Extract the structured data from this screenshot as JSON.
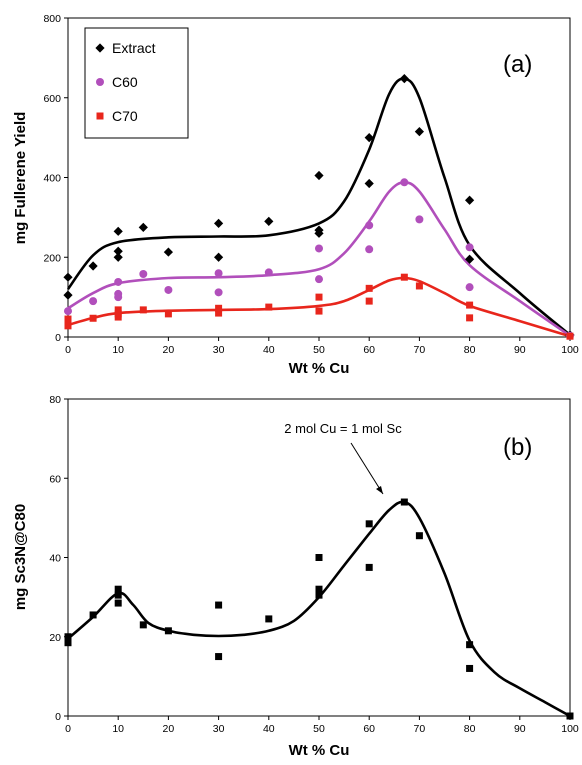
{
  "chart_data": [
    {
      "type": "scatter",
      "panel_label": "(a)",
      "xlabel": "Wt % Cu",
      "ylabel": "mg Fullerene Yield",
      "xlim": [
        0,
        100
      ],
      "ylim": [
        0,
        800
      ],
      "xticks": [
        0,
        10,
        20,
        30,
        40,
        50,
        60,
        70,
        80,
        90,
        100
      ],
      "yticks": [
        0,
        200,
        400,
        600,
        800
      ],
      "grid": false,
      "legend": "top-left",
      "series": [
        {
          "name": "Extract",
          "marker": "diamond",
          "color": "#000000",
          "points": [
            [
              0,
              150
            ],
            [
              0,
              105
            ],
            [
              5,
              178
            ],
            [
              10,
              265
            ],
            [
              10,
              215
            ],
            [
              10,
              200
            ],
            [
              15,
              275
            ],
            [
              20,
              213
            ],
            [
              30,
              285
            ],
            [
              30,
              200
            ],
            [
              40,
              290
            ],
            [
              50,
              405
            ],
            [
              50,
              268
            ],
            [
              50,
              260
            ],
            [
              60,
              500
            ],
            [
              60,
              385
            ],
            [
              67,
              648
            ],
            [
              70,
              515
            ],
            [
              80,
              343
            ],
            [
              80,
              195
            ],
            [
              100,
              5
            ]
          ],
          "curve": [
            [
              0,
              120
            ],
            [
              5,
              205
            ],
            [
              10,
              238
            ],
            [
              20,
              250
            ],
            [
              30,
              252
            ],
            [
              40,
              255
            ],
            [
              50,
              285
            ],
            [
              55,
              340
            ],
            [
              60,
              470
            ],
            [
              64,
              610
            ],
            [
              67,
              648
            ],
            [
              70,
              600
            ],
            [
              75,
              400
            ],
            [
              80,
              230
            ],
            [
              90,
              110
            ],
            [
              100,
              5
            ]
          ]
        },
        {
          "name": "C60",
          "marker": "circle",
          "color": "#b14fbb",
          "points": [
            [
              0,
              65
            ],
            [
              5,
              90
            ],
            [
              10,
              138
            ],
            [
              10,
              108
            ],
            [
              10,
              100
            ],
            [
              15,
              158
            ],
            [
              20,
              118
            ],
            [
              30,
              160
            ],
            [
              30,
              112
            ],
            [
              40,
              162
            ],
            [
              50,
              222
            ],
            [
              50,
              145
            ],
            [
              60,
              280
            ],
            [
              60,
              220
            ],
            [
              67,
              388
            ],
            [
              70,
              295
            ],
            [
              80,
              225
            ],
            [
              80,
              125
            ],
            [
              100,
              3
            ]
          ],
          "curve": [
            [
              0,
              72
            ],
            [
              5,
              110
            ],
            [
              10,
              135
            ],
            [
              20,
              148
            ],
            [
              30,
              150
            ],
            [
              40,
              155
            ],
            [
              50,
              170
            ],
            [
              55,
              210
            ],
            [
              60,
              290
            ],
            [
              64,
              365
            ],
            [
              67,
              388
            ],
            [
              70,
              365
            ],
            [
              75,
              270
            ],
            [
              80,
              180
            ],
            [
              90,
              90
            ],
            [
              100,
              3
            ]
          ]
        },
        {
          "name": "C70",
          "marker": "square",
          "color": "#e8261c",
          "points": [
            [
              0,
              45
            ],
            [
              0,
              35
            ],
            [
              0,
              28
            ],
            [
              5,
              47
            ],
            [
              10,
              68
            ],
            [
              10,
              58
            ],
            [
              10,
              50
            ],
            [
              15,
              68
            ],
            [
              20,
              58
            ],
            [
              30,
              72
            ],
            [
              30,
              60
            ],
            [
              40,
              75
            ],
            [
              50,
              100
            ],
            [
              50,
              65
            ],
            [
              60,
              122
            ],
            [
              60,
              90
            ],
            [
              67,
              150
            ],
            [
              70,
              128
            ],
            [
              80,
              80
            ],
            [
              80,
              48
            ],
            [
              100,
              2
            ]
          ],
          "curve": [
            [
              0,
              30
            ],
            [
              5,
              48
            ],
            [
              10,
              60
            ],
            [
              20,
              66
            ],
            [
              30,
              68
            ],
            [
              40,
              70
            ],
            [
              50,
              78
            ],
            [
              55,
              90
            ],
            [
              60,
              118
            ],
            [
              64,
              142
            ],
            [
              67,
              148
            ],
            [
              70,
              140
            ],
            [
              75,
              110
            ],
            [
              80,
              78
            ],
            [
              90,
              40
            ],
            [
              100,
              2
            ]
          ]
        }
      ]
    },
    {
      "type": "scatter",
      "panel_label": "(b)",
      "xlabel": "Wt % Cu",
      "ylabel": "mg Sc3N@C80",
      "xlim": [
        0,
        100
      ],
      "ylim": [
        0,
        80
      ],
      "xticks": [
        0,
        10,
        20,
        30,
        40,
        50,
        60,
        70,
        80,
        90,
        100
      ],
      "yticks": [
        0,
        20,
        40,
        60,
        80
      ],
      "grid": false,
      "annotation": "2 mol Cu = 1 mol Sc",
      "annotation_target": [
        67,
        54
      ],
      "series": [
        {
          "marker": "square",
          "color": "#000000",
          "points": [
            [
              0,
              20
            ],
            [
              0,
              18.5
            ],
            [
              5,
              25.5
            ],
            [
              10,
              32
            ],
            [
              10,
              30.5
            ],
            [
              10,
              28.5
            ],
            [
              15,
              23
            ],
            [
              20,
              21.5
            ],
            [
              30,
              28
            ],
            [
              30,
              15
            ],
            [
              40,
              24.5
            ],
            [
              50,
              40
            ],
            [
              50,
              32
            ],
            [
              50,
              30.5
            ],
            [
              60,
              48.5
            ],
            [
              60,
              37.5
            ],
            [
              67,
              54
            ],
            [
              70,
              45.5
            ],
            [
              80,
              18
            ],
            [
              80,
              12
            ],
            [
              100,
              0
            ]
          ],
          "curve": [
            [
              0,
              19.5
            ],
            [
              5,
              25
            ],
            [
              10,
              31
            ],
            [
              13,
              28
            ],
            [
              16,
              23.5
            ],
            [
              20,
              21.5
            ],
            [
              25,
              20.5
            ],
            [
              30,
              20.2
            ],
            [
              35,
              20.5
            ],
            [
              40,
              21.5
            ],
            [
              45,
              24
            ],
            [
              50,
              30
            ],
            [
              55,
              38
            ],
            [
              60,
              46
            ],
            [
              64,
              52
            ],
            [
              67,
              54
            ],
            [
              70,
              50
            ],
            [
              75,
              36
            ],
            [
              80,
              19
            ],
            [
              85,
              11
            ],
            [
              90,
              7
            ],
            [
              95,
              3.5
            ],
            [
              100,
              0
            ]
          ]
        }
      ]
    }
  ]
}
